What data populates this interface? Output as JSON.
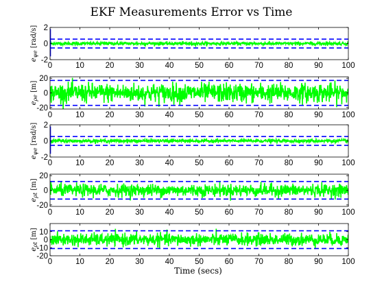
{
  "chart_data": {
    "type": "line",
    "title": "EKF Measurements Error vs Time",
    "xlabel": "Time (secs)",
    "xlim": [
      0,
      100
    ],
    "xticks": [
      0,
      10,
      20,
      30,
      40,
      50,
      60,
      70,
      80,
      90,
      100
    ],
    "colors": {
      "error": "#00ff00",
      "bound": "#0000ff",
      "initial_transient": "#0000ff"
    },
    "axes": [
      {
        "ylabel": "e_{ψe} [rad/s]",
        "ylim": [
          -2,
          2
        ],
        "yticks": [
          -2,
          0,
          2
        ],
        "bound": 0.55,
        "noise_std": 0.1,
        "x_step": 0.1,
        "initial_spike": [
          -1.6,
          1.8
        ]
      },
      {
        "ylabel": "e_{ρe} [m]",
        "ylim": [
          -22,
          22
        ],
        "yticks": [
          -20,
          0,
          20
        ],
        "bound": 17,
        "noise_std": 6.5,
        "x_step": 0.1
      },
      {
        "ylabel": "e_{ψe} [rad/s]",
        "ylim": [
          -2,
          2
        ],
        "yticks": [
          -2,
          0,
          2
        ],
        "bound": 0.55,
        "noise_std": 0.1,
        "x_step": 0.1,
        "initial_spike": [
          -1.6,
          1.8
        ]
      },
      {
        "ylabel": "e_{ρt} [m]",
        "ylim": [
          -22,
          22
        ],
        "yticks": [
          -20,
          0,
          20
        ],
        "bound": 12,
        "noise_std": 4.2,
        "x_step": 0.1
      },
      {
        "ylabel": "e_{ρt} [m]",
        "ylim": [
          -20,
          20
        ],
        "yticks": [
          -20,
          -10,
          0,
          10
        ],
        "bound": 11,
        "noise_std": 3.8,
        "x_step": 0.1
      }
    ]
  }
}
